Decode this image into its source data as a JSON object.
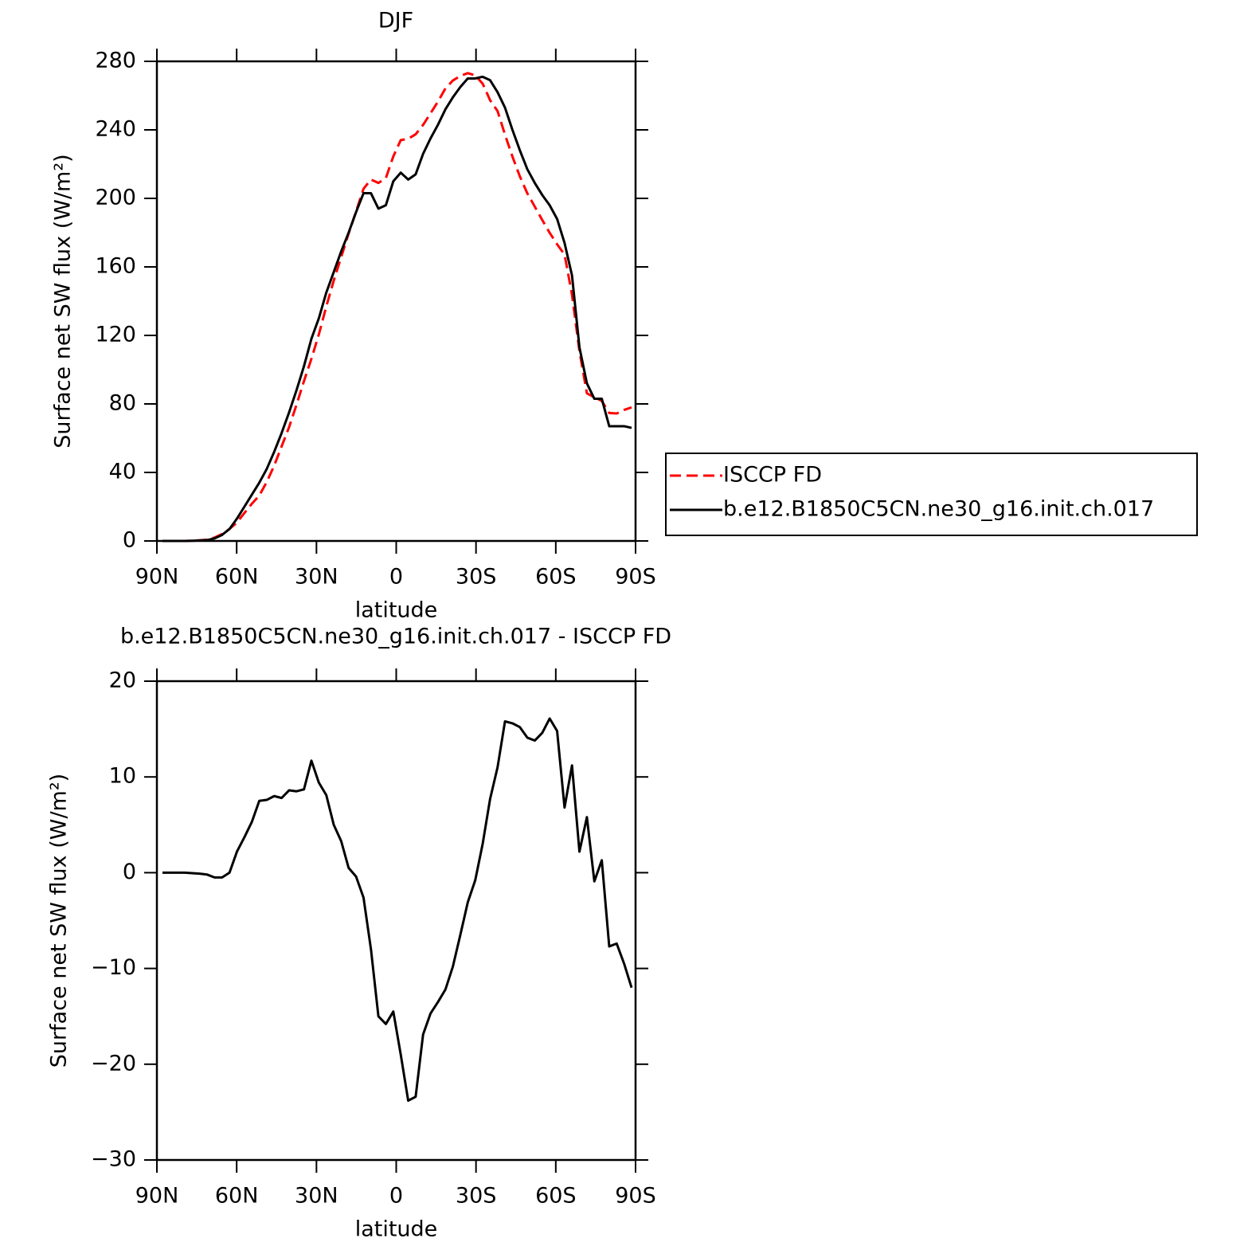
{
  "chart_data": [
    {
      "type": "line",
      "title": "DJF",
      "x_label": "latitude",
      "y_label": "Surface net SW flux (W/m²)",
      "x": [
        87.9,
        85.1,
        82.3,
        79.5,
        76.7,
        73.9,
        71.1,
        68.3,
        65.5,
        62.7,
        59.9,
        57.1,
        54.3,
        51.5,
        48.7,
        45.9,
        43.1,
        40.3,
        37.5,
        34.7,
        31.9,
        29.1,
        26.3,
        23.5,
        20.7,
        17.9,
        15.1,
        12.3,
        9.5,
        6.7,
        3.9,
        1.1,
        -1.7,
        -4.5,
        -7.3,
        -10.1,
        -12.9,
        -15.7,
        -18.5,
        -21.3,
        -24.1,
        -26.9,
        -29.7,
        -32.5,
        -35.3,
        -38.1,
        -40.9,
        -43.7,
        -46.5,
        -49.3,
        -52.1,
        -54.9,
        -57.7,
        -60.5,
        -63.3,
        -66.1,
        -68.9,
        -71.7,
        -74.5,
        -77.3,
        -80.1,
        -82.9,
        -85.7,
        -88.5
      ],
      "series": [
        {
          "name": "ISCCP FD",
          "color": "#ff0000",
          "style": "dashed",
          "values": [
            0,
            0,
            0,
            0,
            0.1,
            0.4,
            0.7,
            2,
            4,
            7,
            10.8,
            16.3,
            21.7,
            26.5,
            34.4,
            44,
            55.2,
            66.4,
            79.5,
            93.3,
            106.3,
            120.6,
            136.9,
            152,
            165.7,
            179.5,
            192.4,
            205.6,
            211,
            209,
            211.8,
            224.5,
            234,
            234.8,
            237.4,
            242.9,
            249.7,
            256.5,
            264.2,
            268.8,
            271.5,
            273.1,
            271.8,
            267,
            257.3,
            251,
            237.2,
            224.4,
            212.8,
            202.9,
            195.2,
            187.4,
            179.9,
            173.2,
            167.2,
            143.8,
            110.8,
            86.2,
            83.9,
            81.7,
            74.7,
            74.4,
            76.5,
            78
          ]
        },
        {
          "name": "b.e12.B1850C5CN.ne30_g16.init.ch.017",
          "color": "#000000",
          "style": "solid",
          "values": [
            0,
            0,
            0,
            0,
            0.1,
            0.3,
            0.5,
            1.5,
            3.5,
            7,
            13,
            20,
            27,
            34,
            42,
            52,
            63,
            75,
            88,
            102,
            118,
            130,
            145,
            157,
            169,
            180,
            192,
            203,
            203,
            194,
            196,
            210,
            215,
            211,
            214,
            226,
            235,
            243,
            252,
            259,
            265,
            270,
            270,
            271,
            269,
            262,
            253,
            240,
            228,
            217,
            209,
            202,
            196,
            188,
            174,
            155,
            113,
            92,
            83,
            83,
            67,
            67,
            67,
            66
          ]
        }
      ],
      "xlim": [
        90,
        -90
      ],
      "xticks": [
        {
          "value": 90,
          "label": "90N"
        },
        {
          "value": 60,
          "label": "60N"
        },
        {
          "value": 30,
          "label": "30N"
        },
        0,
        {
          "value": -30,
          "label": "30S"
        },
        {
          "value": -60,
          "label": "60S"
        },
        {
          "value": -90,
          "label": "90S"
        }
      ],
      "ylim": [
        0,
        280
      ],
      "yticks": [
        0,
        40,
        80,
        120,
        160,
        200,
        240,
        280
      ],
      "legend": "right"
    },
    {
      "type": "line",
      "title": "b.e12.B1850C5CN.ne30_g16.init.ch.017 - ISCCP FD",
      "x_label": "latitude",
      "y_label": "Surface net SW flux (W/m²)",
      "x": [
        87.9,
        85.1,
        82.3,
        79.5,
        76.7,
        73.9,
        71.1,
        68.3,
        65.5,
        62.7,
        59.9,
        57.1,
        54.3,
        51.5,
        48.7,
        45.9,
        43.1,
        40.3,
        37.5,
        34.7,
        31.9,
        29.1,
        26.3,
        23.5,
        20.7,
        17.9,
        15.1,
        12.3,
        9.5,
        6.7,
        3.9,
        1.1,
        -1.7,
        -4.5,
        -7.3,
        -10.1,
        -12.9,
        -15.7,
        -18.5,
        -21.3,
        -24.1,
        -26.9,
        -29.7,
        -32.5,
        -35.3,
        -38.1,
        -40.9,
        -43.7,
        -46.5,
        -49.3,
        -52.1,
        -54.9,
        -57.7,
        -60.5,
        -63.3,
        -66.1,
        -68.9,
        -71.7,
        -74.5,
        -77.3,
        -80.1,
        -82.9,
        -85.7,
        -88.5
      ],
      "series": [
        {
          "color": "#000000",
          "style": "solid",
          "values": [
            0,
            0,
            0,
            0,
            -0.05,
            -0.1,
            -0.2,
            -0.5,
            -0.5,
            0,
            2.2,
            3.7,
            5.3,
            7.5,
            7.6,
            8.0,
            7.8,
            8.6,
            8.5,
            8.7,
            11.7,
            9.4,
            8.1,
            5.0,
            3.3,
            0.5,
            -0.4,
            -2.6,
            -8,
            -15,
            -15.8,
            -14.5,
            -19,
            -23.8,
            -23.4,
            -16.9,
            -14.7,
            -13.5,
            -12.2,
            -9.8,
            -6.5,
            -3.1,
            -0.8,
            3,
            7.7,
            11,
            15.8,
            15.6,
            15.2,
            14.1,
            13.8,
            14.6,
            16.1,
            14.8,
            6.8,
            11.2,
            2.2,
            5.8,
            -0.9,
            1.3,
            -7.7,
            -7.4,
            -9.5,
            -12
          ]
        }
      ],
      "xlim": [
        90,
        -90
      ],
      "xticks": [
        {
          "value": 90,
          "label": "90N"
        },
        {
          "value": 60,
          "label": "60N"
        },
        {
          "value": 30,
          "label": "30N"
        },
        0,
        {
          "value": -30,
          "label": "30S"
        },
        {
          "value": -60,
          "label": "60S"
        },
        {
          "value": -90,
          "label": "90S"
        }
      ],
      "ylim": [
        -30,
        20
      ],
      "yticks": [
        {
          "value": -30,
          "label": "−30"
        },
        {
          "value": -20,
          "label": "−20"
        },
        {
          "value": -10,
          "label": "−10"
        },
        0,
        10,
        20
      ]
    }
  ]
}
